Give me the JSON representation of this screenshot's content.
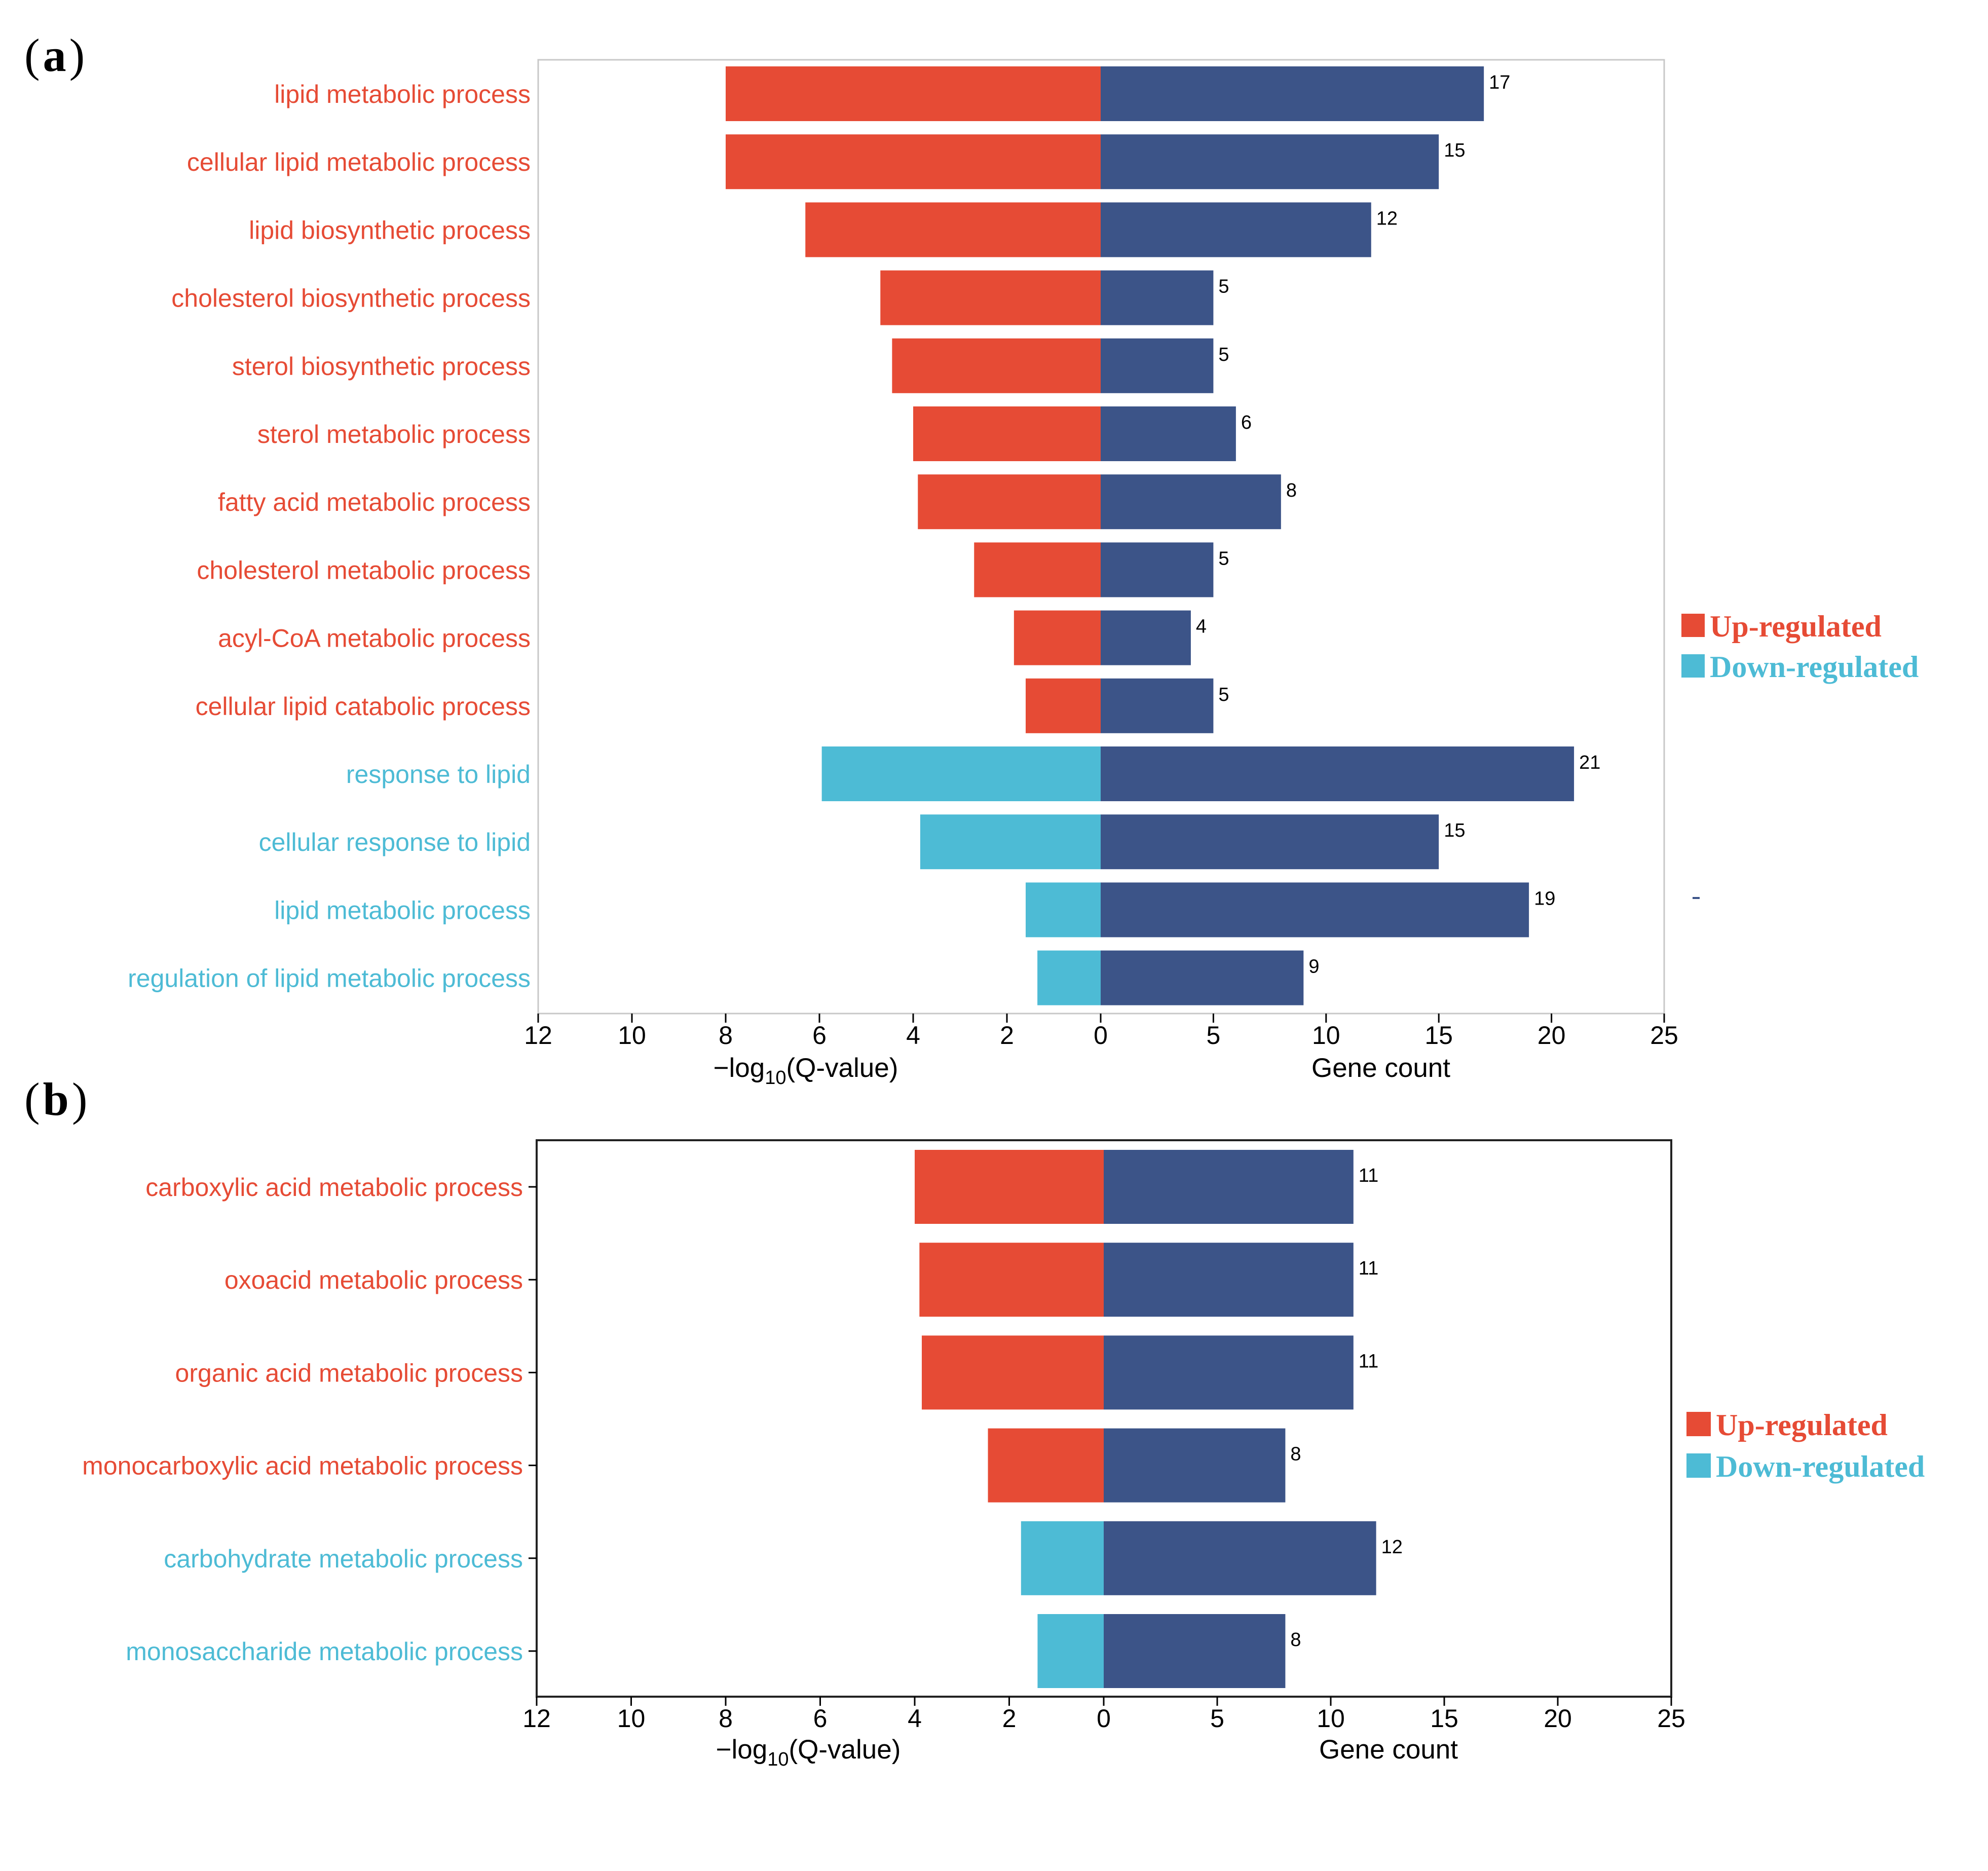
{
  "colors": {
    "up_regulated": "#E64B35",
    "down_regulated": "#4DBBD5",
    "gene_count": "#3C5488",
    "frame": "#c8c8c8",
    "frame_b": "#222222",
    "text": "#000000"
  },
  "chart_data": [
    {
      "panel": "a",
      "panel_label": {
        "open": "(",
        "letter": "a",
        "close": ")"
      },
      "type": "bar",
      "orientation": "horizontal-diverging",
      "left_axis": {
        "title_prefix": "−log",
        "title_sub": "10",
        "title_suffix": "(Q-value)",
        "ticks": [
          12,
          10,
          8,
          6,
          4,
          2,
          0
        ],
        "range": [
          0,
          12
        ]
      },
      "right_axis": {
        "title": "Gene count",
        "ticks": [
          5,
          10,
          15,
          20,
          25
        ],
        "range": [
          0,
          25
        ]
      },
      "categories": [
        "lipid metabolic process",
        "cellular lipid metabolic process",
        "lipid biosynthetic process",
        "cholesterol biosynthetic process",
        "sterol biosynthetic process",
        "sterol metabolic process",
        "fatty acid metabolic process",
        "cholesterol metabolic process",
        "acyl-CoA metabolic process",
        "cellular lipid catabolic process",
        "response to lipid",
        "cellular response to lipid",
        "lipid metabolic process",
        "regulation of lipid metabolic process"
      ],
      "regulation": [
        "up",
        "up",
        "up",
        "up",
        "up",
        "up",
        "up",
        "up",
        "up",
        "up",
        "down",
        "down",
        "down",
        "down"
      ],
      "neg_log10_q": [
        8.0,
        8.0,
        6.3,
        4.7,
        4.45,
        4.0,
        3.9,
        2.7,
        1.85,
        1.6,
        5.95,
        3.85,
        1.6,
        1.35
      ],
      "gene_count": [
        17,
        15,
        12,
        5,
        5,
        6,
        8,
        5,
        4,
        5,
        21,
        15,
        19,
        9
      ],
      "legend": [
        "Up-regulated",
        "Down-regulated"
      ]
    },
    {
      "panel": "b",
      "panel_label": {
        "open": "(",
        "letter": "b",
        "close": ")"
      },
      "type": "bar",
      "orientation": "horizontal-diverging",
      "left_axis": {
        "title_prefix": "−log",
        "title_sub": "10",
        "title_suffix": "(Q-value)",
        "ticks": [
          12,
          10,
          8,
          6,
          4,
          2,
          0
        ],
        "range": [
          0,
          12
        ]
      },
      "right_axis": {
        "title": "Gene count",
        "ticks": [
          5,
          10,
          15,
          20,
          25
        ],
        "range": [
          0,
          25
        ]
      },
      "categories": [
        "carboxylic acid metabolic process",
        "oxoacid metabolic process",
        "organic acid metabolic process",
        "monocarboxylic acid metabolic process",
        "carbohydrate metabolic process",
        "monosaccharide metabolic process"
      ],
      "regulation": [
        "up",
        "up",
        "up",
        "up",
        "down",
        "down"
      ],
      "neg_log10_q": [
        4.0,
        3.9,
        3.85,
        2.45,
        1.75,
        1.4
      ],
      "gene_count": [
        11,
        11,
        11,
        8,
        12,
        8
      ],
      "legend": [
        "Up-regulated",
        "Down-regulated"
      ]
    }
  ]
}
